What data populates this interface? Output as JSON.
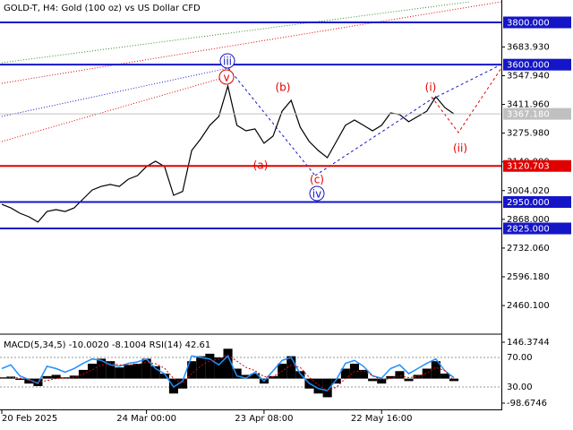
{
  "chart_data": [
    {
      "type": "line",
      "title": "GOLD-T, H4:  Gold (100 oz) vs US Dollar CFD",
      "categories": [
        "20 Feb 2025",
        null,
        null,
        null,
        null,
        null,
        null,
        null,
        null,
        null,
        null,
        null,
        null,
        null,
        null,
        null,
        "24 Mar 00:00",
        null,
        null,
        null,
        null,
        null,
        null,
        null,
        null,
        null,
        null,
        null,
        null,
        "23 Apr 08:00",
        null,
        null,
        null,
        null,
        null,
        null,
        null,
        null,
        null,
        null,
        null,
        null,
        "22 May 16:00",
        null,
        null,
        null,
        null,
        null,
        null,
        null,
        null
      ],
      "values": [
        2939,
        2922,
        2897,
        2880,
        2855,
        2905,
        2914,
        2905,
        2922,
        2965,
        3007,
        3024,
        3033,
        3024,
        3058,
        3075,
        3118,
        3143,
        3118,
        2982,
        3000,
        3194,
        3249,
        3313,
        3355,
        3499,
        3313,
        3287,
        3296,
        3228,
        3262,
        3380,
        3431,
        3304,
        3236,
        3194,
        3160,
        3236,
        3313,
        3338,
        3313,
        3287,
        3313,
        3372,
        3364,
        3330,
        3355,
        3380,
        3448,
        3397,
        3367.18
      ],
      "color": "#000000",
      "ylim": [
        2337.5,
        3897.5
      ],
      "yticks": [
        {
          "value": 3683.93,
          "label": "3683.930"
        },
        {
          "value": 3547.94,
          "label": "3547.940"
        },
        {
          "value": 3411.96,
          "label": "3411.960"
        },
        {
          "value": 3275.98,
          "label": "3275.980"
        },
        {
          "value": 3140,
          "label": "3140.000"
        },
        {
          "value": 3004.02,
          "label": "3004.020"
        },
        {
          "value": 2868,
          "label": "2868.000"
        },
        {
          "value": 2732.06,
          "label": "2732.060"
        },
        {
          "value": 2596.18,
          "label": "2596.180"
        },
        {
          "value": 2460.1,
          "label": "2460.100"
        }
      ],
      "levels": [
        {
          "value": 3800,
          "label": "3800.000",
          "color": "#1515c8"
        },
        {
          "value": 3600,
          "label": "3600.000",
          "color": "#1515c8"
        },
        {
          "value": 3367.18,
          "label": "3367.180",
          "color": "#c0c0c0"
        },
        {
          "value": 3120.703,
          "label": "3120.703",
          "color": "#e00000"
        },
        {
          "value": 2950,
          "label": "2950.000",
          "color": "#1515c8"
        },
        {
          "value": 2825,
          "label": "2825.000",
          "color": "#1515c8"
        }
      ],
      "annotations": [
        {
          "text": "iii",
          "color": "#1515c8"
        },
        {
          "text": "v",
          "color": "#e00000"
        },
        {
          "text": "(b)",
          "color": "#e00000"
        },
        {
          "text": "(i)",
          "color": "#e00000"
        },
        {
          "text": "(a)",
          "color": "#e00000"
        },
        {
          "text": "(c)",
          "color": "#e00000"
        },
        {
          "text": "iv",
          "color": "#1515c8"
        },
        {
          "text": "(ii)",
          "color": "#e00000"
        }
      ]
    },
    {
      "type": "bar",
      "title": "MACD(5,34,5) -10.0020 -8.1004 RSI(14) 42.61",
      "values": [
        5,
        8,
        -5,
        -20,
        -30,
        10,
        15,
        5,
        12,
        35,
        60,
        80,
        70,
        45,
        55,
        60,
        80,
        50,
        20,
        -60,
        -40,
        70,
        90,
        100,
        85,
        120,
        40,
        15,
        20,
        -20,
        10,
        60,
        90,
        30,
        -40,
        -60,
        -75,
        -20,
        40,
        60,
        35,
        -10,
        -20,
        10,
        30,
        -10,
        15,
        40,
        70,
        20,
        -10
      ],
      "color": "#000000",
      "ylim": [
        -98.6746,
        146.3744
      ],
      "yticks": [
        146.3744,
        -98.6746
      ],
      "y2lim": [
        8.2,
        90.6
      ],
      "y2ticks": [
        {
          "value": 70,
          "label": "70.00"
        },
        {
          "value": 30,
          "label": "30.00"
        }
      ],
      "series": [
        {
          "axis": "y2",
          "color": "#1e90ff",
          "values": [
            55,
            60,
            45,
            40,
            35,
            58,
            55,
            50,
            55,
            62,
            68,
            66,
            60,
            58,
            62,
            64,
            68,
            55,
            48,
            30,
            38,
            72,
            70,
            68,
            60,
            72,
            45,
            42,
            50,
            38,
            52,
            66,
            70,
            48,
            35,
            28,
            25,
            40,
            62,
            66,
            58,
            45,
            42,
            55,
            60,
            48,
            55,
            62,
            68,
            52,
            42.61
          ]
        },
        {
          "color": "#e00000",
          "values": [
            3,
            5,
            2,
            -6,
            -15,
            -8,
            0,
            3,
            6,
            18,
            35,
            55,
            62,
            55,
            55,
            57,
            66,
            60,
            42,
            0,
            -20,
            20,
            50,
            72,
            78,
            95,
            70,
            45,
            32,
            8,
            8,
            30,
            55,
            45,
            5,
            -25,
            -48,
            -35,
            0,
            28,
            32,
            12,
            -5,
            0,
            12,
            4,
            8,
            22,
            45,
            32,
            -8.1004
          ]
        }
      ]
    }
  ]
}
